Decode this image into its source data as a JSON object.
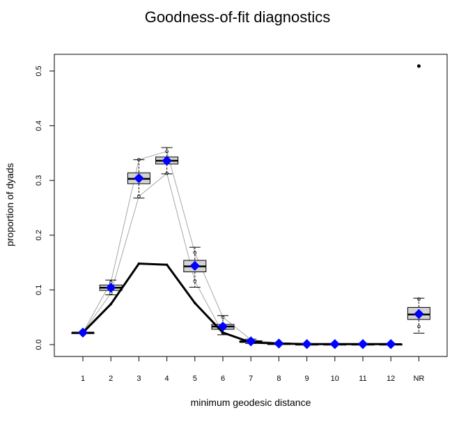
{
  "chart_data": {
    "type": "boxplot",
    "title": "Goodness-of-fit diagnostics",
    "xlabel": "minimum geodesic distance",
    "ylabel": "proportion of dyads",
    "categories": [
      "1",
      "2",
      "3",
      "4",
      "5",
      "6",
      "7",
      "8",
      "9",
      "10",
      "11",
      "12",
      "NR"
    ],
    "yticks": [
      "0.0",
      "0.1",
      "0.2",
      "0.3",
      "0.4",
      "0.5"
    ],
    "ylim": [
      -0.02,
      0.53
    ],
    "observed": [
      0.022,
      0.074,
      0.148,
      0.146,
      0.076,
      0.022,
      0.004,
      0.002,
      0.001,
      0.001,
      0.001,
      0.001,
      0.509
    ],
    "simulated_mean": [
      0.022,
      0.104,
      0.304,
      0.336,
      0.144,
      0.033,
      0.006,
      0.002,
      0.001,
      0.001,
      0.001,
      0.001,
      0.056
    ],
    "simulated_boxes": [
      {
        "min": 0.021,
        "q1": 0.021,
        "median": 0.022,
        "q3": 0.022,
        "max": 0.022
      },
      {
        "min": 0.091,
        "q1": 0.099,
        "median": 0.104,
        "q3": 0.109,
        "max": 0.118
      },
      {
        "min": 0.268,
        "q1": 0.294,
        "median": 0.303,
        "q3": 0.314,
        "max": 0.338
      },
      {
        "min": 0.312,
        "q1": 0.33,
        "median": 0.336,
        "q3": 0.343,
        "max": 0.36
      },
      {
        "min": 0.105,
        "q1": 0.133,
        "median": 0.143,
        "q3": 0.154,
        "max": 0.178
      },
      {
        "min": 0.018,
        "q1": 0.028,
        "median": 0.033,
        "q3": 0.037,
        "max": 0.053
      },
      {
        "min": 0.002,
        "q1": 0.004,
        "median": 0.006,
        "q3": 0.007,
        "max": 0.01
      },
      {
        "min": 0.001,
        "q1": 0.001,
        "median": 0.002,
        "q3": 0.002,
        "max": 0.003
      },
      {
        "min": 0.0,
        "q1": 0.001,
        "median": 0.001,
        "q3": 0.001,
        "max": 0.002
      },
      {
        "min": 0.0,
        "q1": 0.001,
        "median": 0.001,
        "q3": 0.001,
        "max": 0.002
      },
      {
        "min": 0.0,
        "q1": 0.001,
        "median": 0.001,
        "q3": 0.001,
        "max": 0.002
      },
      {
        "min": 0.0,
        "q1": 0.001,
        "median": 0.001,
        "q3": 0.001,
        "max": 0.002
      },
      {
        "min": 0.021,
        "q1": 0.046,
        "median": 0.055,
        "q3": 0.068,
        "max": 0.085
      }
    ],
    "simulated_upper_line": [
      0.022,
      0.114,
      0.338,
      0.353,
      0.168,
      0.05,
      0.009,
      0.003,
      0.002,
      0.002,
      0.002,
      0.002,
      0.083
    ],
    "simulated_lower_line": [
      0.022,
      0.094,
      0.271,
      0.313,
      0.116,
      0.021,
      0.003,
      0.001,
      0.0,
      0.0,
      0.0,
      0.0,
      0.033
    ],
    "colors": {
      "observed_line": "#000000",
      "mean_marker": "#0000ff",
      "box_fill": "#d3d3d3",
      "range_lines": "#a6a6a6"
    },
    "grid": false,
    "legend": "none"
  }
}
